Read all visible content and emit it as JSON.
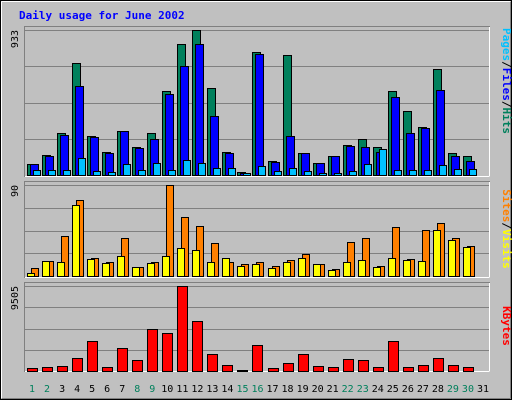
{
  "chart_data": {
    "type": "bar",
    "title": "Daily usage for June 2002",
    "categories": [
      "1",
      "2",
      "3",
      "4",
      "5",
      "6",
      "7",
      "8",
      "9",
      "10",
      "11",
      "12",
      "13",
      "14",
      "15",
      "16",
      "17",
      "18",
      "19",
      "20",
      "21",
      "22",
      "23",
      "24",
      "25",
      "26",
      "27",
      "28",
      "29",
      "30",
      "31"
    ],
    "weekend_days": [
      "1",
      "2",
      "8",
      "9",
      "15",
      "16",
      "22",
      "23",
      "29",
      "30"
    ],
    "colors": {
      "background": "#c0c0c0",
      "title": "#0000ff",
      "weekday_label": "#000000",
      "weekend_label": "#00805c",
      "hits": "#00805c",
      "files": "#0000ff",
      "pages": "#00c0ff",
      "visits": "#ffff00",
      "sites": "#ff8000",
      "kbytes": "#ff0000"
    },
    "panels": [
      {
        "id": "hits-files-pages",
        "axis_max_label": "933",
        "ymax": 933,
        "legend": [
          {
            "text": "Pages",
            "color": "#00c0ff"
          },
          {
            "text": "/",
            "color": "#000000"
          },
          {
            "text": "Files",
            "color": "#0000ff"
          },
          {
            "text": "/",
            "color": "#000000"
          },
          {
            "text": "Hits",
            "color": "#00805c"
          }
        ],
        "series": [
          {
            "name": "Hits",
            "color": "#00805c",
            "values": [
              70,
              130,
              270,
              720,
              250,
              150,
              285,
              180,
              270,
              540,
              842,
              933,
              562,
              150,
              20,
              790,
              90,
              770,
              140,
              80,
              125,
              190,
              230,
              180,
              540,
              410,
              310,
              682,
              140,
              125,
              0
            ]
          },
          {
            "name": "Files",
            "color": "#0000ff",
            "values": [
              70,
              125,
              260,
              570,
              245,
              140,
              280,
              175,
              230,
              520,
              700,
              840,
              380,
              140,
              15,
              780,
              85,
              250,
              140,
              80,
              125,
              185,
              180,
              150,
              505,
              270,
              300,
              545,
              125,
              90,
              0
            ]
          },
          {
            "name": "Pages",
            "color": "#00c0ff",
            "values": [
              30,
              30,
              30,
              110,
              25,
              20,
              70,
              35,
              80,
              30,
              95,
              80,
              45,
              45,
              10,
              60,
              25,
              45,
              25,
              15,
              10,
              25,
              70,
              170,
              35,
              35,
              30,
              65,
              40,
              40,
              0
            ]
          }
        ]
      },
      {
        "id": "sites-visits",
        "axis_max_label": "90",
        "ymax": 90,
        "legend": [
          {
            "text": "Sites",
            "color": "#ff8000"
          },
          {
            "text": "/",
            "color": "#000000"
          },
          {
            "text": "Visits",
            "color": "#ffff00"
          }
        ],
        "series": [
          {
            "name": "Sites",
            "color": "#ff8000",
            "values": [
              8,
              15,
              40,
              75,
              18,
              14,
              38,
              9,
              14,
              90,
              58,
              49,
              33,
              14,
              12,
              14,
              10,
              16,
              22,
              12,
              7,
              34,
              38,
              10,
              48,
              17,
              45,
              52,
              38,
              30,
              0
            ]
          },
          {
            "name": "Visits",
            "color": "#ffff00",
            "values": [
              3,
              15,
              14,
              70,
              17,
              13,
              20,
              9,
              13,
              20,
              28,
              26,
              14,
              18,
              10,
              12,
              8,
              14,
              18,
              12,
              6,
              14,
              16,
              9,
              18,
              16,
              15,
              45,
              36,
              29,
              0
            ]
          }
        ]
      },
      {
        "id": "kbytes",
        "axis_max_label": "9505",
        "ymax": 9505,
        "legend": [
          {
            "text": "KBytes",
            "color": "#ff0000"
          }
        ],
        "series": [
          {
            "name": "KBytes",
            "color": "#ff0000",
            "values": [
              300,
              400,
              600,
              1500,
              3300,
              450,
              2600,
              1200,
              4700,
              4200,
              9505,
              5600,
              1950,
              720,
              150,
              2950,
              350,
              900,
              1850,
              550,
              450,
              1350,
              1250,
              420,
              3300,
              500,
              700,
              1500,
              700,
              500,
              0
            ]
          }
        ]
      }
    ]
  }
}
